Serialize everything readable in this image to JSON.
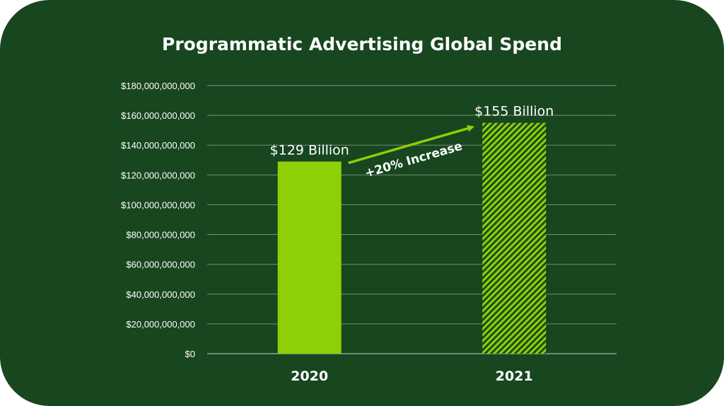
{
  "chart_data": {
    "type": "bar",
    "title": "Programmatic Advertising Global Spend",
    "categories": [
      "2020",
      "2021"
    ],
    "values": [
      129000000000,
      155000000000
    ],
    "data_labels": [
      "$129 Billion",
      "$155 Billion"
    ],
    "bar_styles": [
      "solid",
      "striped"
    ],
    "ylim": [
      0,
      180000000000
    ],
    "yticks": [
      0,
      20000000000,
      40000000000,
      60000000000,
      80000000000,
      100000000000,
      120000000000,
      140000000000,
      160000000000,
      180000000000
    ],
    "ytick_labels": [
      "$0",
      "$20,000,000,000",
      "$40,000,000,000",
      "$60,000,000,000",
      "$80,000,000,000",
      "$100,000,000,000",
      "$120,000,000,000",
      "$140,000,000,000",
      "$160,000,000,000",
      "$180,000,000,000"
    ],
    "xlabel": "",
    "ylabel": "",
    "grid": true,
    "legend": "none",
    "annotation": {
      "text": "+20% Increase",
      "style": "arrow from 2020 bar to 2021 bar"
    }
  },
  "colors": {
    "background": "#17461f",
    "bar": "#8ecf06",
    "text": "#ffffff",
    "grid": "#7f9a84",
    "arrow": "#8ecf06"
  }
}
